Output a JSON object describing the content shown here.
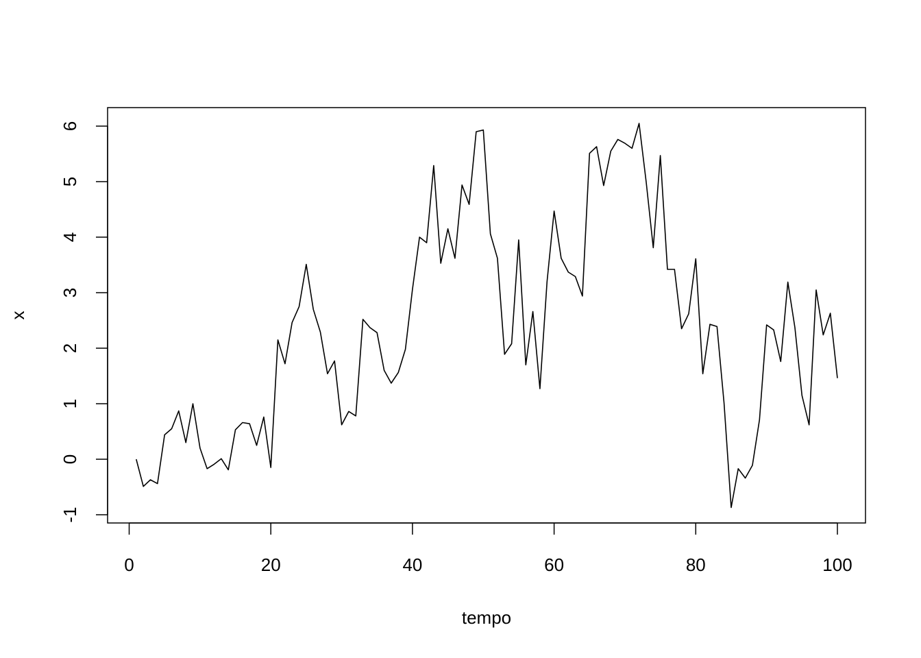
{
  "chart_data": {
    "type": "line",
    "title": "",
    "xlabel": "tempo",
    "ylabel": "x",
    "xlim": [
      0,
      100
    ],
    "ylim": [
      -1,
      6
    ],
    "x_ticks": [
      0,
      20,
      40,
      60,
      80,
      100
    ],
    "y_ticks": [
      -1,
      0,
      1,
      2,
      3,
      4,
      5,
      6
    ],
    "grid": false,
    "legend": "none",
    "line_color": "#000000",
    "series": [
      {
        "x": [
          1,
          2,
          3,
          4,
          5,
          6,
          7,
          8,
          9,
          10,
          11,
          12,
          13,
          14,
          15,
          16,
          17,
          18,
          19,
          20,
          21,
          22,
          23,
          24,
          25,
          26,
          27,
          28,
          29,
          30,
          31,
          32,
          33,
          34,
          35,
          36,
          37,
          38,
          39,
          40,
          41,
          42,
          43,
          44,
          45,
          46,
          47,
          48,
          49,
          50,
          51,
          52,
          53,
          54,
          55,
          56,
          57,
          58,
          59,
          60,
          61,
          62,
          63,
          64,
          65,
          66,
          67,
          68,
          69,
          70,
          71,
          72,
          73,
          74,
          75,
          76,
          77,
          78,
          79,
          80,
          81,
          82,
          83,
          84,
          85,
          86,
          87,
          88,
          89,
          90,
          91,
          92,
          93,
          94,
          95,
          96,
          97,
          98,
          99,
          100
        ],
        "values": [
          0.0,
          -0.49,
          -0.37,
          -0.44,
          0.44,
          0.55,
          0.87,
          0.3,
          1.0,
          0.2,
          -0.17,
          -0.09,
          0.01,
          -0.19,
          0.53,
          0.66,
          0.64,
          0.25,
          0.76,
          -0.15,
          2.15,
          1.72,
          2.46,
          2.75,
          3.51,
          2.7,
          2.29,
          1.54,
          1.77,
          0.62,
          0.86,
          0.78,
          2.52,
          2.37,
          2.28,
          1.6,
          1.37,
          1.56,
          1.98,
          3.06,
          4.0,
          3.9,
          5.29,
          3.53,
          4.15,
          3.62,
          4.94,
          4.59,
          5.9,
          5.93,
          4.06,
          3.62,
          1.89,
          2.08,
          3.95,
          1.7,
          2.66,
          1.27,
          3.2,
          4.47,
          3.62,
          3.37,
          3.29,
          2.94,
          5.51,
          5.63,
          4.93,
          5.55,
          5.76,
          5.69,
          5.6,
          6.05,
          4.99,
          3.81,
          5.47,
          3.42,
          3.42,
          2.35,
          2.62,
          3.61,
          1.54,
          2.43,
          2.39,
          1.01,
          -0.87,
          -0.17,
          -0.34,
          -0.11,
          0.71,
          2.42,
          2.33,
          1.76,
          3.19,
          2.37,
          1.15,
          0.62,
          3.05,
          2.24,
          2.63,
          1.46
        ]
      }
    ]
  }
}
